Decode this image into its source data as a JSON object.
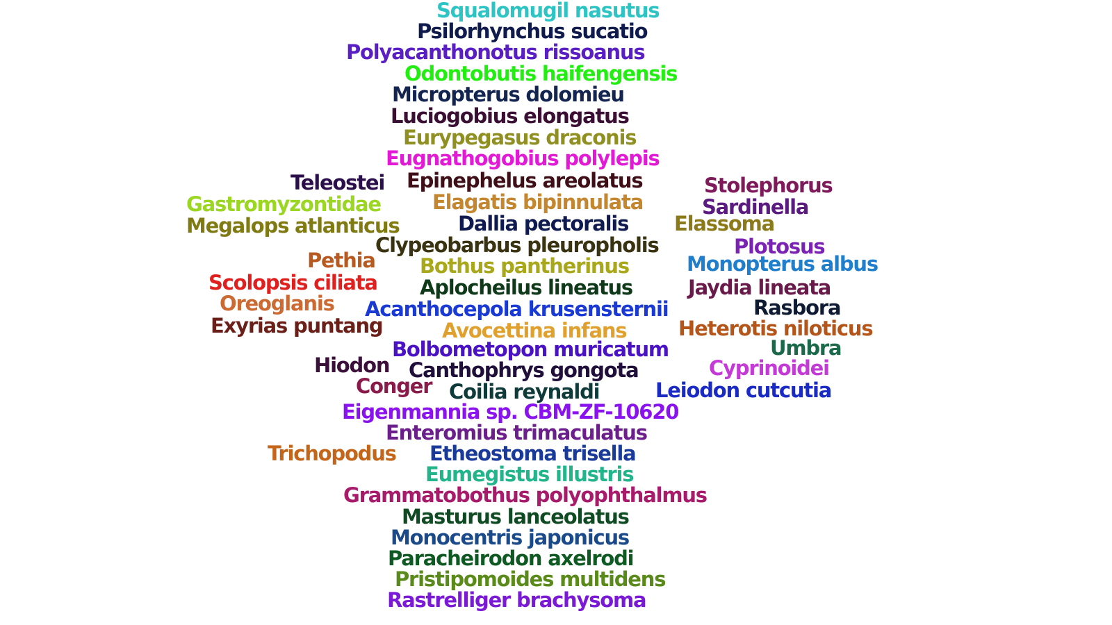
{
  "words": [
    {
      "text": "Squalomugil nasutus",
      "color": "#2ec4c4"
    },
    {
      "text": "Psilorhynchus sucatio",
      "color": "#0f1a4d"
    },
    {
      "text": "Polyacanthonotus rissoanus",
      "color": "#5a1fc4"
    },
    {
      "text": "Odontobutis haifengensis",
      "color": "#22ee11"
    },
    {
      "text": "Micropterus dolomieu",
      "color": "#12244f"
    },
    {
      "text": "Luciogobius elongatus",
      "color": "#3a0f33"
    },
    {
      "text": "Eurypegasus draconis",
      "color": "#8f8f22"
    },
    {
      "text": "Eugnathogobius polylepis",
      "color": "#e21ad6"
    },
    {
      "text": "Teleostei",
      "color": "#2a0f4a"
    },
    {
      "text": "Epinephelus areolatus",
      "color": "#3f0f18"
    },
    {
      "text": "Stolephorus",
      "color": "#7f1a5a"
    },
    {
      "text": "Gastromyzontidae",
      "color": "#9ad622"
    },
    {
      "text": "Elagatis bipinnulata",
      "color": "#c4862e"
    },
    {
      "text": "Sardinella",
      "color": "#5a1a7f"
    },
    {
      "text": "Megalops atlanticus",
      "color": "#7f7a12"
    },
    {
      "text": "Dallia pectoralis",
      "color": "#0f1a4f"
    },
    {
      "text": "Elassoma",
      "color": "#8a7a1a"
    },
    {
      "text": "Clypeobarbus pleuropholis",
      "color": "#3a3312"
    },
    {
      "text": "Plotosus",
      "color": "#7a22b4"
    },
    {
      "text": "Pethia",
      "color": "#b85a1f"
    },
    {
      "text": "Bothus pantherinus",
      "color": "#a8a81a"
    },
    {
      "text": "Monopterus albus",
      "color": "#1f7fcc"
    },
    {
      "text": "Scolopsis ciliata",
      "color": "#e01f1f"
    },
    {
      "text": "Aplocheilus lineatus",
      "color": "#0f3a1a"
    },
    {
      "text": "Jaydia lineata",
      "color": "#6a1a4a"
    },
    {
      "text": "Oreoglanis",
      "color": "#cc6a33"
    },
    {
      "text": "Acanthocepola krusensternii",
      "color": "#1a3ad6"
    },
    {
      "text": "Rasbora",
      "color": "#0f1a33"
    },
    {
      "text": "Exyrias puntang",
      "color": "#6a1f18"
    },
    {
      "text": "Avocettina infans",
      "color": "#e0a02e"
    },
    {
      "text": "Heterotis niloticus",
      "color": "#b4551a"
    },
    {
      "text": "Bolbometopon muricatum",
      "color": "#4a12c4"
    },
    {
      "text": "Umbra",
      "color": "#1a6a4a"
    },
    {
      "text": "Hiodon",
      "color": "#3a0f3a"
    },
    {
      "text": "Canthophrys gongota",
      "color": "#1f0f3a"
    },
    {
      "text": "Cyprinoidei",
      "color": "#c43ad6"
    },
    {
      "text": "Conger",
      "color": "#8a1a4a"
    },
    {
      "text": "Coilia reynaldi",
      "color": "#0f3a3a"
    },
    {
      "text": "Leiodon cutcutia",
      "color": "#1a2ac4"
    },
    {
      "text": "Eigenmannia sp. CBM-ZF-10620",
      "color": "#8a12ee"
    },
    {
      "text": "Enteromius trimaculatus",
      "color": "#6a1f8a"
    },
    {
      "text": "Trichopodus",
      "color": "#c4661a"
    },
    {
      "text": "Etheostoma trisella",
      "color": "#1a3a9a"
    },
    {
      "text": "Eumegistus illustris",
      "color": "#22b48a"
    },
    {
      "text": "Grammatobothus polyophthalmus",
      "color": "#a81a6a"
    },
    {
      "text": "Masturus lanceolatus",
      "color": "#0f4a22"
    },
    {
      "text": "Monocentris japonicus",
      "color": "#1a4a8a"
    },
    {
      "text": "Paracheirodon axelrodi",
      "color": "#0f5a22"
    },
    {
      "text": "Pristipomoides multidens",
      "color": "#5a8a1a"
    },
    {
      "text": "Rastrelliger brachysoma",
      "color": "#7a1ad6"
    }
  ]
}
